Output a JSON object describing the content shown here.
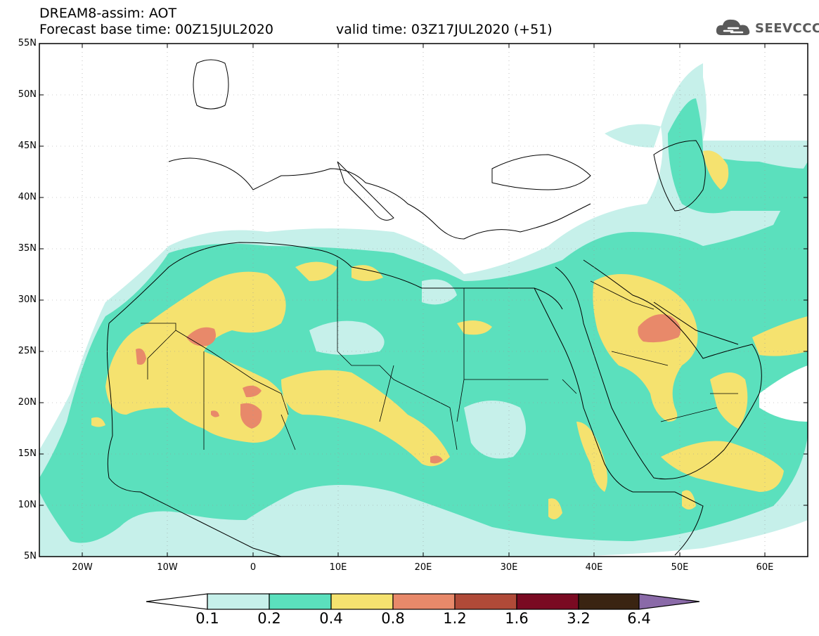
{
  "header": {
    "line1": "DREAM8-assim: AOT",
    "line2": "Forecast base time: 00Z15JUL2020",
    "line3": "valid time: 03Z17JUL2020 (+51)"
  },
  "logo": {
    "text": "SEEVCCC",
    "icon": "cloud-icon",
    "color": "#5a5a5a"
  },
  "map": {
    "lon_range": [
      -25,
      65
    ],
    "lat_range": [
      5,
      55
    ],
    "lat_ticks": [
      "55N",
      "50N",
      "45N",
      "40N",
      "35N",
      "30N",
      "25N",
      "20N",
      "15N",
      "10N",
      "5N"
    ],
    "lon_ticks": [
      "20W",
      "10W",
      "0",
      "10E",
      "20E",
      "30E",
      "40E",
      "50E",
      "60E"
    ]
  },
  "colorbar": {
    "labels": [
      "0.1",
      "0.2",
      "0.4",
      "0.8",
      "1.2",
      "1.6",
      "3.2",
      "6.4"
    ],
    "colors": [
      "#ffffff",
      "#c6f0ea",
      "#5be0bd",
      "#f5e26f",
      "#e8896a",
      "#b04a38",
      "#7a0a22",
      "#3a2412",
      "#8a6aa8"
    ]
  }
}
